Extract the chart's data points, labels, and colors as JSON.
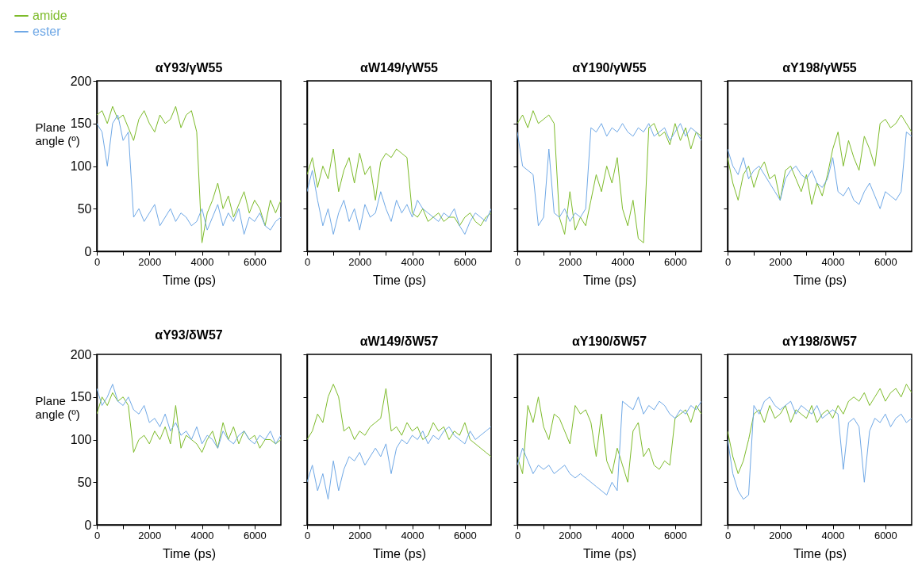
{
  "chart_data": [
    {
      "type": "line",
      "title": "αY93/γW55",
      "xlabel": "Time (ps)",
      "ylabel": "Plane angle (º)",
      "legend": "top left",
      "xlim": [
        0,
        7000
      ],
      "ylim": [
        0,
        200
      ],
      "xticks": [
        0,
        {
          "value": 1000,
          "label": null
        },
        2000,
        {
          "value": 3000,
          "label": null
        },
        4000,
        {
          "value": 5000,
          "label": null
        },
        6000
      ],
      "yticks": [
        0,
        50,
        100,
        150,
        200
      ],
      "x": [
        0,
        200,
        400,
        600,
        800,
        1000,
        1200,
        1400,
        1600,
        1800,
        2000,
        2200,
        2400,
        2600,
        2800,
        3000,
        3200,
        3400,
        3600,
        3800,
        4000,
        4200,
        4400,
        4600,
        4800,
        5000,
        5200,
        5400,
        5600,
        5800,
        6000,
        6200,
        6400,
        6600,
        6800,
        7000
      ],
      "series": [
        {
          "name": "amide",
          "color": "#7dbb2a",
          "values": [
            160,
            165,
            150,
            170,
            155,
            160,
            145,
            130,
            155,
            165,
            150,
            140,
            160,
            150,
            155,
            170,
            145,
            160,
            165,
            140,
            10,
            45,
            60,
            80,
            50,
            65,
            40,
            55,
            70,
            45,
            60,
            50,
            30,
            60,
            45,
            60
          ]
        },
        {
          "name": "ester",
          "color": "#6fa8e6",
          "values": [
            150,
            140,
            100,
            150,
            160,
            130,
            140,
            40,
            50,
            35,
            45,
            55,
            30,
            40,
            50,
            35,
            45,
            40,
            30,
            35,
            50,
            25,
            40,
            55,
            30,
            45,
            35,
            50,
            20,
            40,
            35,
            45,
            30,
            25,
            35,
            40
          ]
        }
      ]
    },
    {
      "type": "line",
      "title": "αW149/γW55",
      "xlabel": "Time (ps)",
      "tick_labels": "x",
      "xlim": [
        0,
        7000
      ],
      "ylim": [
        0,
        200
      ],
      "xticks": [
        0,
        {
          "value": 1000,
          "label": null
        },
        2000,
        {
          "value": 3000,
          "label": null
        },
        4000,
        {
          "value": 5000,
          "label": null
        },
        6000
      ],
      "yticks": [
        0,
        50,
        100,
        150,
        200
      ],
      "x": [
        0,
        200,
        400,
        600,
        800,
        1000,
        1200,
        1400,
        1600,
        1800,
        2000,
        2200,
        2400,
        2600,
        2800,
        3000,
        3200,
        3400,
        3600,
        3800,
        4000,
        4200,
        4400,
        4600,
        4800,
        5000,
        5200,
        5400,
        5600,
        5800,
        6000,
        6200,
        6400,
        6600,
        6800,
        7000
      ],
      "series": [
        {
          "color": "#7dbb2a",
          "values": [
            90,
            110,
            75,
            100,
            85,
            120,
            70,
            95,
            110,
            80,
            115,
            90,
            100,
            60,
            105,
            115,
            110,
            120,
            115,
            110,
            45,
            40,
            50,
            35,
            40,
            45,
            35,
            40,
            40,
            30,
            40,
            45,
            35,
            30,
            40,
            45
          ]
        },
        {
          "color": "#6fa8e6",
          "values": [
            70,
            95,
            60,
            30,
            50,
            20,
            45,
            60,
            35,
            50,
            25,
            55,
            40,
            45,
            70,
            50,
            35,
            60,
            45,
            55,
            40,
            60,
            50,
            45,
            40,
            35,
            45,
            40,
            50,
            30,
            20,
            35,
            45,
            40,
            35,
            50
          ]
        }
      ]
    },
    {
      "type": "line",
      "title": "αY190/γW55",
      "xlabel": "Time (ps)",
      "tick_labels": "x",
      "xlim": [
        0,
        7000
      ],
      "ylim": [
        0,
        200
      ],
      "xticks": [
        0,
        {
          "value": 1000,
          "label": null
        },
        2000,
        {
          "value": 3000,
          "label": null
        },
        4000,
        {
          "value": 5000,
          "label": null
        },
        6000
      ],
      "yticks": [
        0,
        50,
        100,
        150,
        200
      ],
      "x": [
        0,
        200,
        400,
        600,
        800,
        1000,
        1200,
        1400,
        1600,
        1800,
        2000,
        2200,
        2400,
        2600,
        2800,
        3000,
        3200,
        3400,
        3600,
        3800,
        4000,
        4200,
        4400,
        4600,
        4800,
        5000,
        5200,
        5400,
        5600,
        5800,
        6000,
        6200,
        6400,
        6600,
        6800,
        7000
      ],
      "series": [
        {
          "color": "#7dbb2a",
          "values": [
            150,
            160,
            145,
            165,
            150,
            155,
            160,
            150,
            40,
            20,
            70,
            25,
            40,
            30,
            60,
            90,
            70,
            100,
            80,
            110,
            50,
            30,
            60,
            15,
            10,
            145,
            150,
            135,
            140,
            125,
            150,
            130,
            145,
            120,
            140,
            135
          ]
        },
        {
          "color": "#6fa8e6",
          "values": [
            140,
            100,
            95,
            90,
            30,
            40,
            120,
            45,
            40,
            50,
            35,
            45,
            40,
            50,
            145,
            140,
            150,
            135,
            145,
            140,
            150,
            140,
            135,
            145,
            140,
            150,
            135,
            140,
            145,
            130,
            140,
            150,
            135,
            145,
            140,
            130
          ]
        }
      ]
    },
    {
      "type": "line",
      "title": "αY198/γW55",
      "xlabel": "Time (ps)",
      "tick_labels": "x",
      "xlim": [
        0,
        7000
      ],
      "ylim": [
        0,
        200
      ],
      "xticks": [
        0,
        {
          "value": 1000,
          "label": null
        },
        2000,
        {
          "value": 3000,
          "label": null
        },
        4000,
        {
          "value": 5000,
          "label": null
        },
        6000
      ],
      "yticks": [
        0,
        50,
        100,
        150,
        200
      ],
      "x": [
        0,
        200,
        400,
        600,
        800,
        1000,
        1200,
        1400,
        1600,
        1800,
        2000,
        2200,
        2400,
        2600,
        2800,
        3000,
        3200,
        3400,
        3600,
        3800,
        4000,
        4200,
        4400,
        4600,
        4800,
        5000,
        5200,
        5400,
        5600,
        5800,
        6000,
        6200,
        6400,
        6600,
        6800,
        7000
      ],
      "series": [
        {
          "color": "#7dbb2a",
          "values": [
            110,
            80,
            60,
            90,
            100,
            75,
            95,
            105,
            85,
            90,
            60,
            95,
            100,
            85,
            70,
            90,
            55,
            80,
            65,
            90,
            120,
            140,
            100,
            130,
            110,
            95,
            135,
            120,
            100,
            150,
            155,
            145,
            150,
            160,
            150,
            140
          ]
        },
        {
          "color": "#6fa8e6",
          "values": [
            120,
            100,
            90,
            110,
            85,
            95,
            100,
            90,
            80,
            70,
            60,
            85,
            95,
            100,
            90,
            85,
            95,
            80,
            75,
            85,
            110,
            70,
            65,
            75,
            60,
            55,
            70,
            80,
            65,
            50,
            70,
            65,
            60,
            70,
            140,
            135
          ]
        }
      ]
    },
    {
      "type": "line",
      "title": "αY93/δW57",
      "xlabel": "Time (ps)",
      "ylabel": "Plane angle (º)",
      "xlim": [
        0,
        7000
      ],
      "ylim": [
        0,
        200
      ],
      "xticks": [
        0,
        {
          "value": 1000,
          "label": null
        },
        2000,
        {
          "value": 3000,
          "label": null
        },
        4000,
        {
          "value": 5000,
          "label": null
        },
        6000
      ],
      "yticks": [
        0,
        50,
        100,
        150,
        200
      ],
      "x": [
        0,
        200,
        400,
        600,
        800,
        1000,
        1200,
        1400,
        1600,
        1800,
        2000,
        2200,
        2400,
        2600,
        2800,
        3000,
        3200,
        3400,
        3600,
        3800,
        4000,
        4200,
        4400,
        4600,
        4800,
        5000,
        5200,
        5400,
        5600,
        5800,
        6000,
        6200,
        6400,
        6600,
        6800,
        7000
      ],
      "series": [
        {
          "color": "#7dbb2a",
          "values": [
            130,
            150,
            140,
            155,
            145,
            150,
            140,
            85,
            100,
            105,
            95,
            110,
            100,
            115,
            95,
            140,
            90,
            105,
            100,
            95,
            85,
            100,
            110,
            90,
            120,
            100,
            115,
            95,
            110,
            100,
            105,
            90,
            100,
            100,
            95,
            100
          ]
        },
        {
          "color": "#6fa8e6",
          "values": [
            160,
            140,
            150,
            165,
            145,
            140,
            150,
            135,
            130,
            140,
            120,
            125,
            115,
            130,
            110,
            120,
            105,
            110,
            100,
            115,
            95,
            105,
            100,
            90,
            110,
            100,
            95,
            105,
            110,
            100,
            95,
            105,
            100,
            110,
            95,
            105
          ]
        }
      ]
    },
    {
      "type": "line",
      "title": "αW149/δW57",
      "xlabel": "Time (ps)",
      "tick_labels": "x",
      "xlim": [
        0,
        7000
      ],
      "ylim": [
        0,
        200
      ],
      "xticks": [
        0,
        {
          "value": 1000,
          "label": null
        },
        2000,
        {
          "value": 3000,
          "label": null
        },
        4000,
        {
          "value": 5000,
          "label": null
        },
        6000
      ],
      "yticks": [
        0,
        50,
        100,
        150,
        200
      ],
      "x": [
        0,
        200,
        400,
        600,
        800,
        1000,
        1200,
        1400,
        1600,
        1800,
        2000,
        2200,
        2400,
        2600,
        2800,
        3000,
        3200,
        3400,
        3600,
        3800,
        4000,
        4200,
        4400,
        4600,
        4800,
        5000,
        5200,
        5400,
        5600,
        5800,
        6000,
        6200,
        6400,
        6600,
        6800,
        7000
      ],
      "series": [
        {
          "color": "#7dbb2a",
          "values": [
            100,
            110,
            130,
            120,
            150,
            165,
            150,
            110,
            115,
            100,
            110,
            105,
            115,
            120,
            125,
            160,
            110,
            115,
            105,
            120,
            110,
            115,
            100,
            105,
            120,
            110,
            115,
            100,
            110,
            105,
            120,
            100,
            95,
            90,
            85,
            80
          ]
        },
        {
          "color": "#6fa8e6",
          "values": [
            50,
            70,
            40,
            60,
            30,
            75,
            40,
            65,
            80,
            75,
            85,
            70,
            80,
            90,
            80,
            95,
            60,
            90,
            100,
            95,
            105,
            100,
            110,
            95,
            105,
            100,
            110,
            115,
            105,
            100,
            95,
            110,
            100,
            105,
            110,
            115
          ]
        }
      ]
    },
    {
      "type": "line",
      "title": "αY190/δW57",
      "xlabel": "Time (ps)",
      "tick_labels": "x",
      "xlim": [
        0,
        7000
      ],
      "ylim": [
        0,
        200
      ],
      "xticks": [
        0,
        {
          "value": 1000,
          "label": null
        },
        2000,
        {
          "value": 3000,
          "label": null
        },
        4000,
        {
          "value": 5000,
          "label": null
        },
        6000
      ],
      "yticks": [
        0,
        50,
        100,
        150,
        200
      ],
      "x": [
        0,
        200,
        400,
        600,
        800,
        1000,
        1200,
        1400,
        1600,
        1800,
        2000,
        2200,
        2400,
        2600,
        2800,
        3000,
        3200,
        3400,
        3600,
        3800,
        4000,
        4200,
        4400,
        4600,
        4800,
        5000,
        5200,
        5400,
        5600,
        5800,
        6000,
        6200,
        6400,
        6600,
        6800,
        7000
      ],
      "series": [
        {
          "color": "#7dbb2a",
          "values": [
            80,
            60,
            140,
            120,
            150,
            115,
            100,
            130,
            125,
            110,
            95,
            140,
            130,
            135,
            120,
            80,
            130,
            75,
            60,
            90,
            70,
            50,
            110,
            120,
            80,
            90,
            70,
            65,
            75,
            70,
            125,
            130,
            135,
            120,
            140,
            130
          ]
        },
        {
          "color": "#6fa8e6",
          "values": [
            70,
            90,
            75,
            60,
            70,
            65,
            70,
            60,
            65,
            70,
            60,
            55,
            60,
            55,
            50,
            45,
            40,
            35,
            50,
            40,
            145,
            140,
            135,
            150,
            130,
            140,
            135,
            145,
            140,
            130,
            125,
            135,
            130,
            140,
            135,
            145
          ]
        }
      ]
    },
    {
      "type": "line",
      "title": "αY198/δW57",
      "xlabel": "Time (ps)",
      "tick_labels": "x",
      "xlim": [
        0,
        7000
      ],
      "ylim": [
        0,
        200
      ],
      "xticks": [
        0,
        {
          "value": 1000,
          "label": null
        },
        2000,
        {
          "value": 3000,
          "label": null
        },
        4000,
        {
          "value": 5000,
          "label": null
        },
        6000
      ],
      "yticks": [
        0,
        50,
        100,
        150,
        200
      ],
      "x": [
        0,
        200,
        400,
        600,
        800,
        1000,
        1200,
        1400,
        1600,
        1800,
        2000,
        2200,
        2400,
        2600,
        2800,
        3000,
        3200,
        3400,
        3600,
        3800,
        4000,
        4200,
        4400,
        4600,
        4800,
        5000,
        5200,
        5400,
        5600,
        5800,
        6000,
        6200,
        6400,
        6600,
        6800,
        7000
      ],
      "series": [
        {
          "color": "#7dbb2a",
          "values": [
            110,
            80,
            60,
            75,
            100,
            130,
            135,
            120,
            140,
            125,
            130,
            140,
            120,
            135,
            130,
            125,
            140,
            120,
            130,
            135,
            125,
            140,
            130,
            145,
            150,
            145,
            155,
            140,
            150,
            160,
            145,
            155,
            160,
            150,
            165,
            155
          ]
        },
        {
          "color": "#6fa8e6",
          "values": [
            100,
            60,
            40,
            30,
            35,
            140,
            130,
            145,
            150,
            140,
            135,
            140,
            145,
            130,
            140,
            135,
            130,
            140,
            125,
            130,
            135,
            130,
            65,
            120,
            125,
            115,
            50,
            110,
            125,
            120,
            130,
            115,
            125,
            130,
            120,
            125
          ]
        }
      ]
    }
  ]
}
